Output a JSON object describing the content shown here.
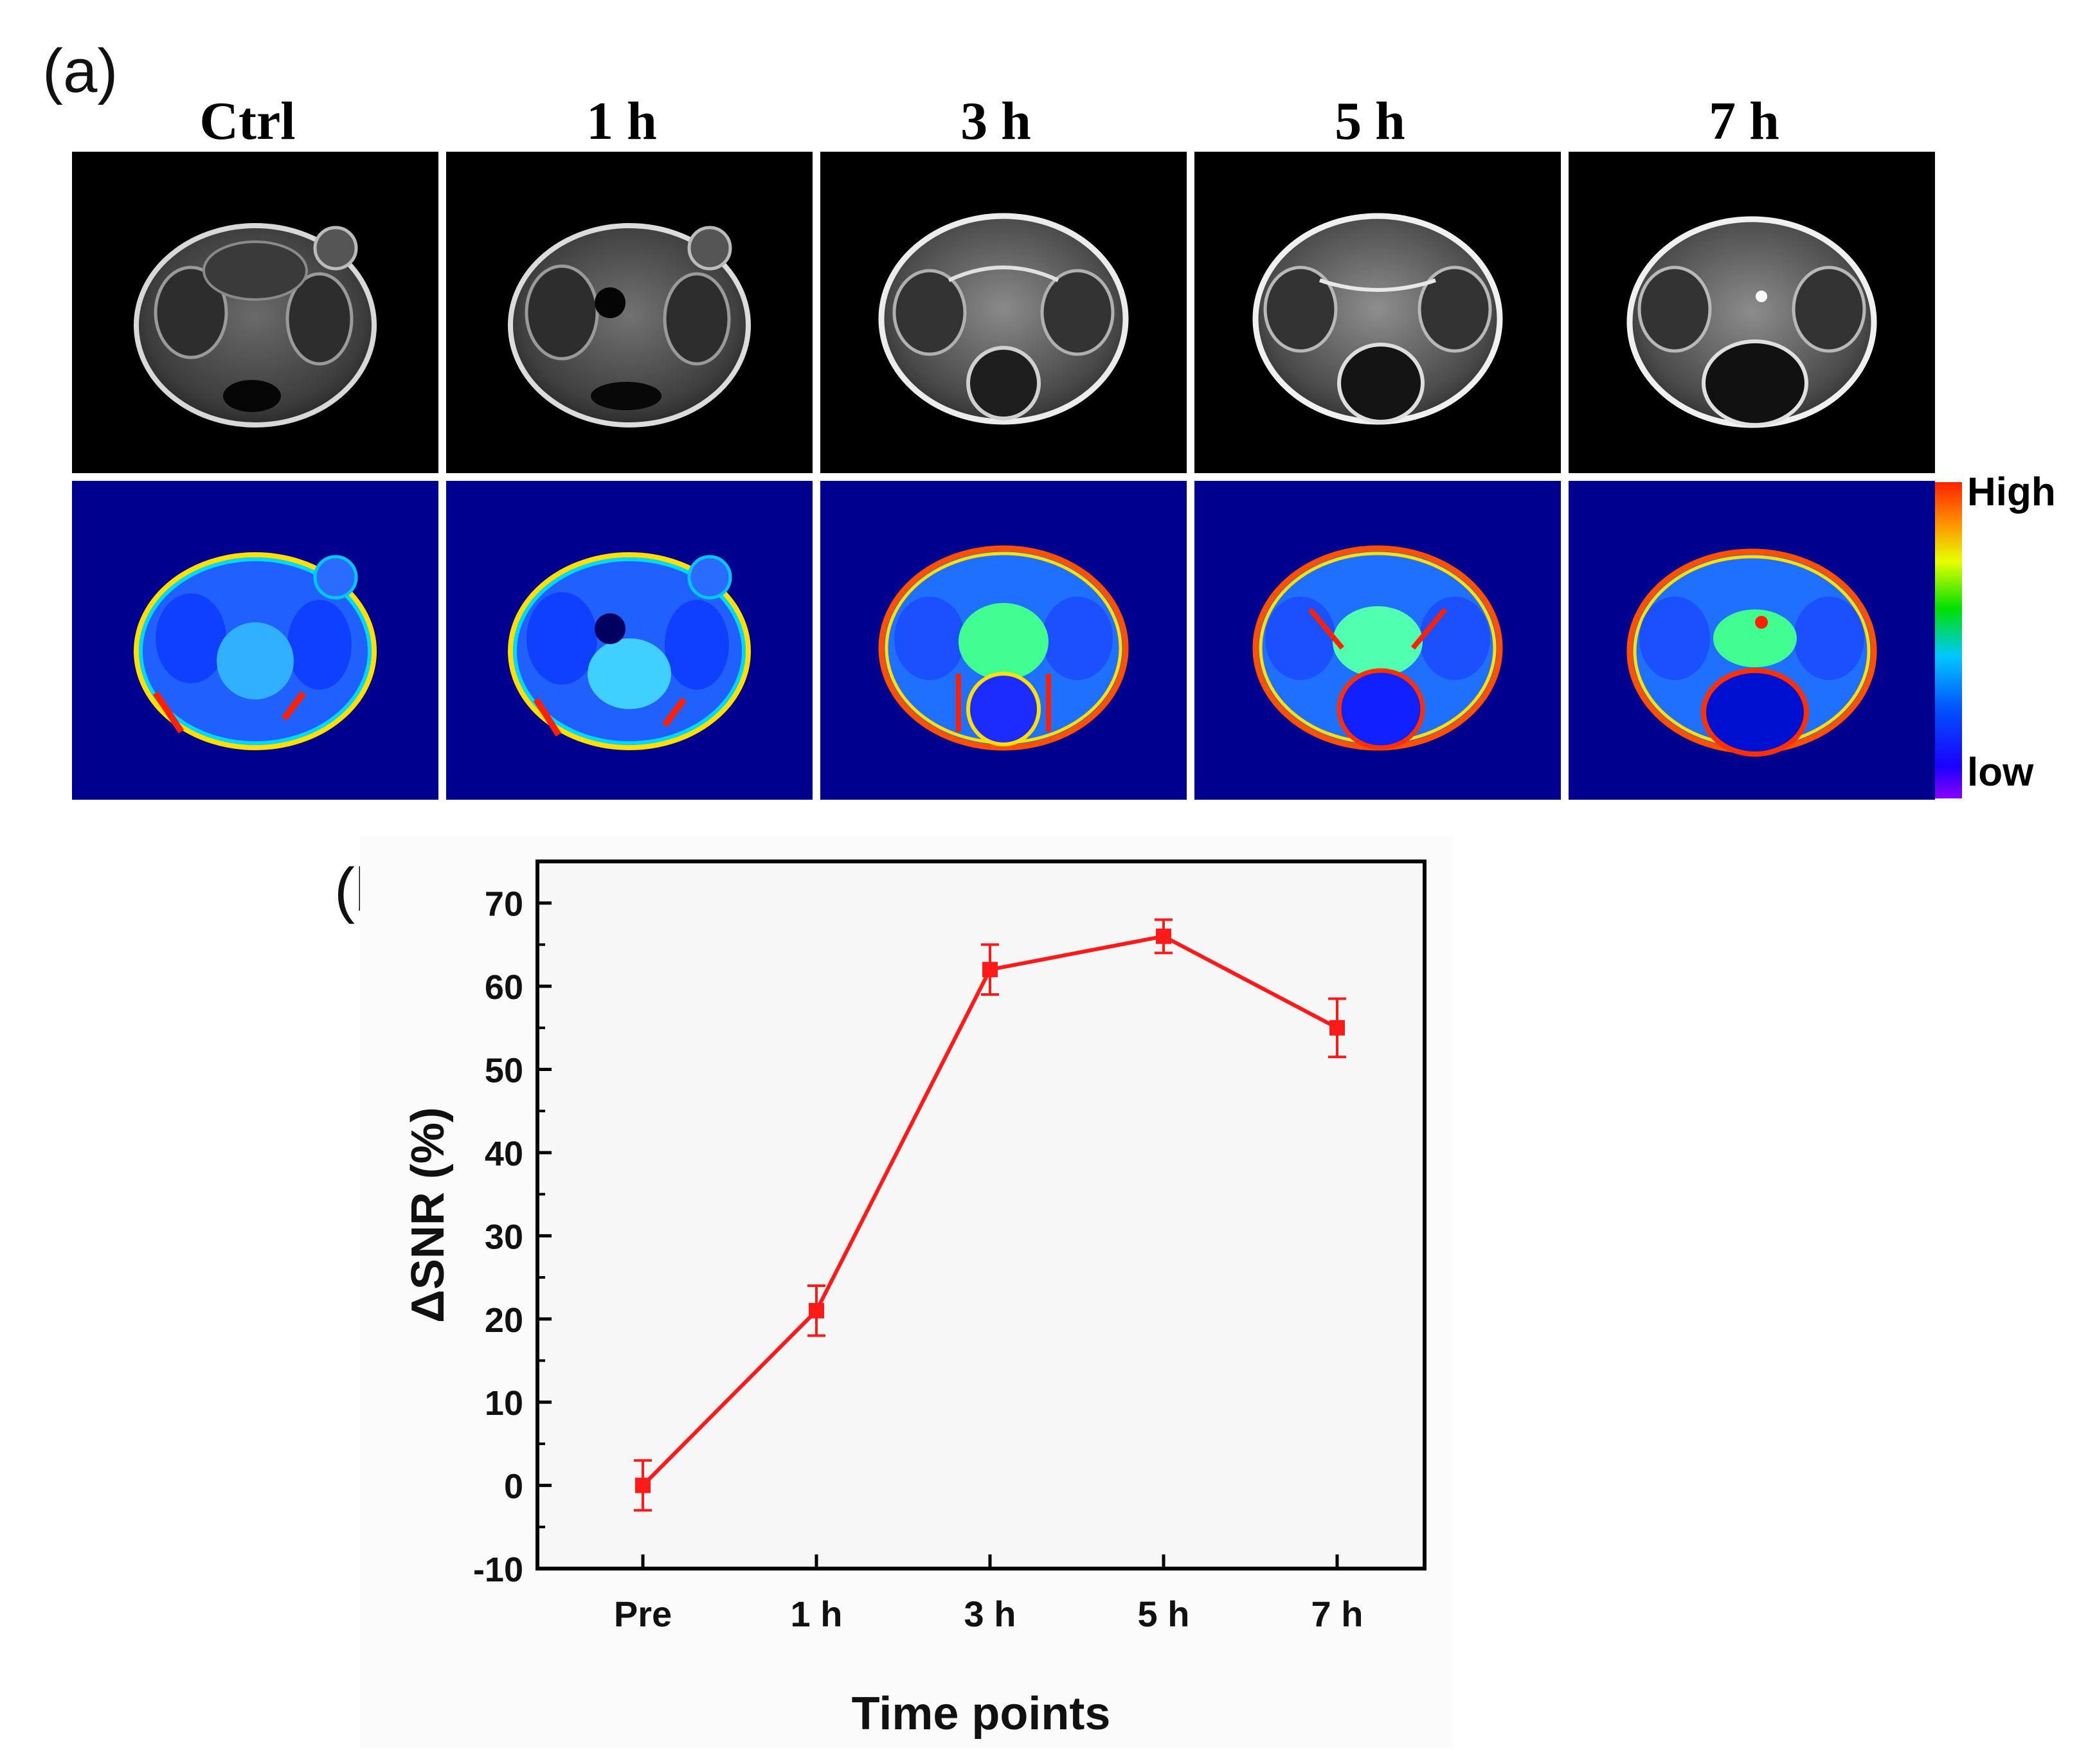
{
  "figure": {
    "panel_a_label": "(a)",
    "panel_b_label": "(b)",
    "columns": [
      "Ctrl",
      "1 h",
      "3 h",
      "5 h",
      "7 h"
    ],
    "colorbar": {
      "high_label": "High",
      "low_label": "low"
    },
    "colors": {
      "mri_background": "#000000",
      "heatmap_background": "#00008f",
      "series": "#ff1a1a"
    }
  },
  "chart_data": {
    "type": "line",
    "title": "",
    "xlabel": "Time points",
    "ylabel": "ΔSNR (%)",
    "categories": [
      "Pre",
      "1 h",
      "3 h",
      "5 h",
      "7 h"
    ],
    "series": [
      {
        "values": [
          0,
          21,
          62,
          66,
          55
        ],
        "errors": [
          3,
          3,
          3,
          2,
          3.5
        ]
      }
    ],
    "ylim": [
      -10,
      75
    ],
    "yticks": [
      -10,
      0,
      10,
      20,
      30,
      40,
      50,
      60,
      70
    ],
    "grid": false
  }
}
